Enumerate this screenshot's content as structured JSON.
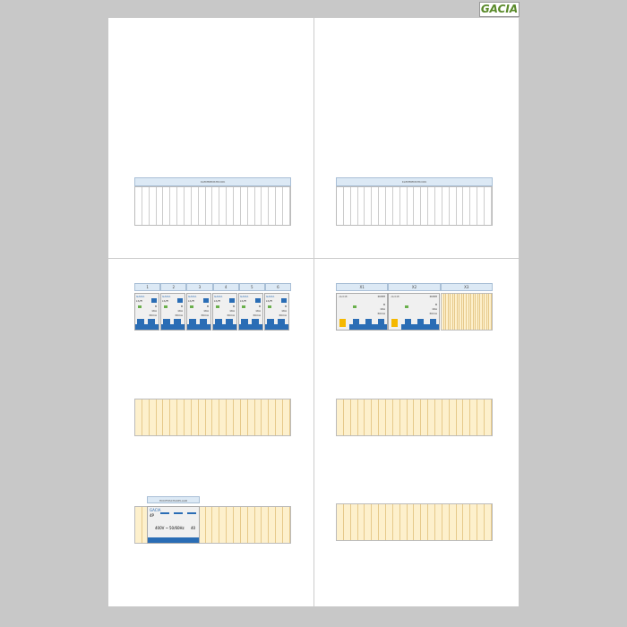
{
  "logo": "GACIA",
  "top_left": {
    "label": "KLEMMENSTROOK"
  },
  "top_right": {
    "label": "KLEMMENSTROOK"
  },
  "groups_left": {
    "labels": [
      "1",
      "2",
      "3",
      "4",
      "5",
      "6"
    ],
    "breaker": {
      "brand": "GACIA",
      "type": "LS/FI",
      "curve": "B",
      "rating": "16A",
      "sensitivity": "30mA"
    }
  },
  "groups_right": {
    "labels": [
      "X1",
      "X2",
      "X3"
    ],
    "rcd": {
      "brand": "-G.C.P-",
      "type": "RCBH",
      "curve": "B",
      "rating": "16A",
      "sensitivity": "30mA"
    }
  },
  "main_switch": {
    "label": "HOOFDSCHAKELAAR",
    "brand": "GACIA",
    "poles": "4P",
    "voltage": "400V ~",
    "freq": "50/60Hz",
    "rating": "40"
  },
  "colors": {
    "accent": "#2a6db5",
    "empty_slot": "#fdf0cc",
    "header": "#dce9f5"
  }
}
